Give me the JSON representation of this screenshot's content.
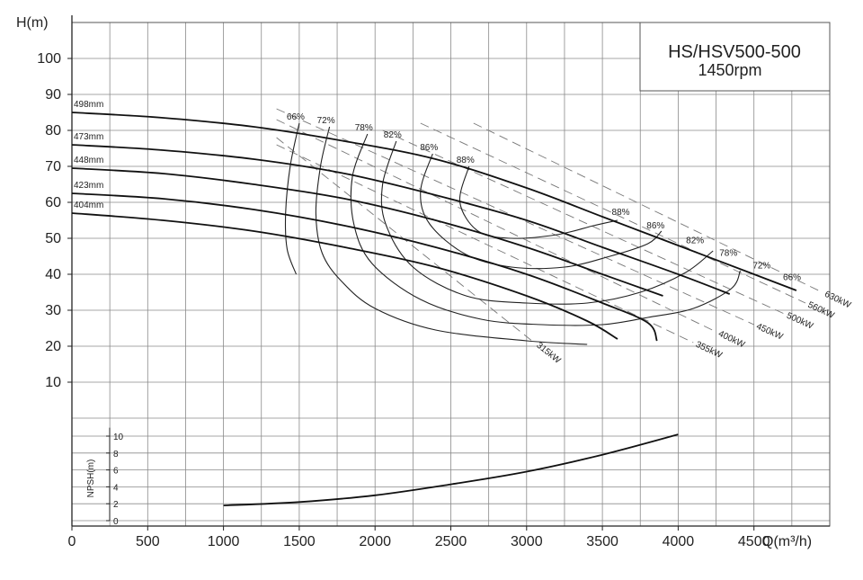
{
  "chart_data": {
    "type": "line",
    "title": "HS/HSV500-500",
    "subtitle": "1450rpm",
    "y_axis": {
      "label": "H(m)",
      "range": [
        0,
        110
      ],
      "ticks": [
        "10",
        "20",
        "30",
        "40",
        "50",
        "60",
        "70",
        "80",
        "90",
        "100"
      ]
    },
    "x_axis": {
      "label": "Q(m³/h)",
      "range": [
        0,
        5000
      ],
      "ticks": [
        "0",
        "500",
        "1000",
        "1500",
        "2000",
        "2500",
        "3000",
        "3500",
        "4000",
        "4500"
      ]
    },
    "npsh_axis": {
      "label": "NPSH(m)",
      "range": [
        0,
        11
      ],
      "ticks": [
        "0",
        "2",
        "4",
        "6",
        "8",
        "10"
      ]
    },
    "impeller_curves": [
      {
        "label": "498mm",
        "points": [
          [
            0,
            85
          ],
          [
            600,
            83.5
          ],
          [
            1200,
            81
          ],
          [
            1800,
            77
          ],
          [
            2400,
            72
          ],
          [
            3000,
            64
          ],
          [
            3500,
            56
          ],
          [
            4000,
            48
          ],
          [
            4500,
            40
          ],
          [
            4780,
            35.5
          ]
        ]
      },
      {
        "label": "473mm",
        "points": [
          [
            0,
            76
          ],
          [
            600,
            74.5
          ],
          [
            1200,
            72
          ],
          [
            1800,
            68
          ],
          [
            2400,
            62
          ],
          [
            3000,
            55
          ],
          [
            3500,
            47.5
          ],
          [
            4000,
            40
          ],
          [
            4340,
            34.5
          ]
        ]
      },
      {
        "label": "448mm",
        "points": [
          [
            0,
            69.5
          ],
          [
            600,
            68
          ],
          [
            1200,
            65
          ],
          [
            1800,
            61
          ],
          [
            2400,
            55
          ],
          [
            3000,
            47.5
          ],
          [
            3500,
            40
          ],
          [
            3900,
            34
          ]
        ]
      },
      {
        "label": "423mm",
        "points": [
          [
            0,
            62.5
          ],
          [
            600,
            61
          ],
          [
            1200,
            58
          ],
          [
            1800,
            53.5
          ],
          [
            2400,
            47.5
          ],
          [
            3000,
            40
          ],
          [
            3500,
            32
          ],
          [
            3800,
            26.5
          ],
          [
            3860,
            21.5
          ]
        ]
      },
      {
        "label": "404mm",
        "points": [
          [
            0,
            57
          ],
          [
            600,
            55
          ],
          [
            1200,
            52
          ],
          [
            1800,
            47.5
          ],
          [
            2400,
            42
          ],
          [
            3000,
            34
          ],
          [
            3400,
            27
          ],
          [
            3600,
            22
          ]
        ]
      }
    ],
    "efficiency_curves": [
      {
        "label": "66%",
        "points": [
          [
            1500,
            82
          ],
          [
            1440,
            70
          ],
          [
            1410,
            57
          ],
          [
            1420,
            47
          ],
          [
            1480,
            40
          ]
        ]
      },
      {
        "label": "72%",
        "points": [
          [
            1700,
            81
          ],
          [
            1640,
            70
          ],
          [
            1610,
            57
          ],
          [
            1650,
            46
          ],
          [
            1780,
            38
          ],
          [
            2000,
            30.5
          ],
          [
            2400,
            24.5
          ],
          [
            3000,
            21.5
          ],
          [
            3400,
            20.5
          ]
        ]
      },
      {
        "label": "78%",
        "points": [
          [
            1950,
            79
          ],
          [
            1850,
            67
          ],
          [
            1860,
            54
          ],
          [
            1980,
            43
          ],
          [
            2300,
            33
          ],
          [
            2700,
            27.5
          ],
          [
            3100,
            26
          ],
          [
            3500,
            26
          ],
          [
            3800,
            28
          ],
          [
            4100,
            30.5
          ],
          [
            4350,
            36
          ],
          [
            4410,
            41
          ]
        ]
      },
      {
        "label": "82%",
        "points": [
          [
            2140,
            77
          ],
          [
            2050,
            65
          ],
          [
            2070,
            54
          ],
          [
            2250,
            42
          ],
          [
            2600,
            34
          ],
          [
            3000,
            32
          ],
          [
            3400,
            32
          ],
          [
            3750,
            35
          ],
          [
            4050,
            40.5
          ],
          [
            4230,
            46.5
          ]
        ]
      },
      {
        "label": "86%",
        "points": [
          [
            2380,
            73.5
          ],
          [
            2300,
            63
          ],
          [
            2360,
            54
          ],
          [
            2600,
            45.5
          ],
          [
            2900,
            42
          ],
          [
            3250,
            42
          ],
          [
            3550,
            45
          ],
          [
            3800,
            48.5
          ],
          [
            3890,
            52
          ]
        ]
      },
      {
        "label": "88%",
        "points": [
          [
            2620,
            70
          ],
          [
            2560,
            60
          ],
          [
            2680,
            52
          ],
          [
            2900,
            50
          ],
          [
            3200,
            51
          ],
          [
            3440,
            53.5
          ],
          [
            3600,
            55
          ]
        ]
      }
    ],
    "efficiency_right_labels": [
      "88%",
      "86%",
      "82%",
      "78%",
      "72%",
      "66%"
    ],
    "power_lines": [
      {
        "label": "315kW",
        "points": [
          [
            1350,
            78
          ],
          [
            3050,
            21
          ]
        ]
      },
      {
        "label": "355kW",
        "points": [
          [
            1350,
            76
          ],
          [
            4100,
            21
          ]
        ]
      },
      {
        "label": "400kW",
        "points": [
          [
            1350,
            83
          ],
          [
            4250,
            24
          ]
        ]
      },
      {
        "label": "450kW",
        "points": [
          [
            1350,
            86
          ],
          [
            4500,
            26
          ]
        ]
      },
      {
        "label": "500kW",
        "points": [
          [
            2050,
            80
          ],
          [
            4700,
            29
          ]
        ]
      },
      {
        "label": "560kW",
        "points": [
          [
            2300,
            82
          ],
          [
            4840,
            32
          ]
        ]
      },
      {
        "label": "630kW",
        "points": [
          [
            2650,
            82
          ],
          [
            4950,
            35
          ]
        ]
      }
    ],
    "npsh_curve": {
      "label": "NPSH",
      "points": [
        [
          1000,
          1.8
        ],
        [
          1500,
          2.2
        ],
        [
          2000,
          3
        ],
        [
          2500,
          4.3
        ],
        [
          3000,
          5.8
        ],
        [
          3500,
          7.8
        ],
        [
          4000,
          10.2
        ]
      ]
    },
    "grid": true
  }
}
